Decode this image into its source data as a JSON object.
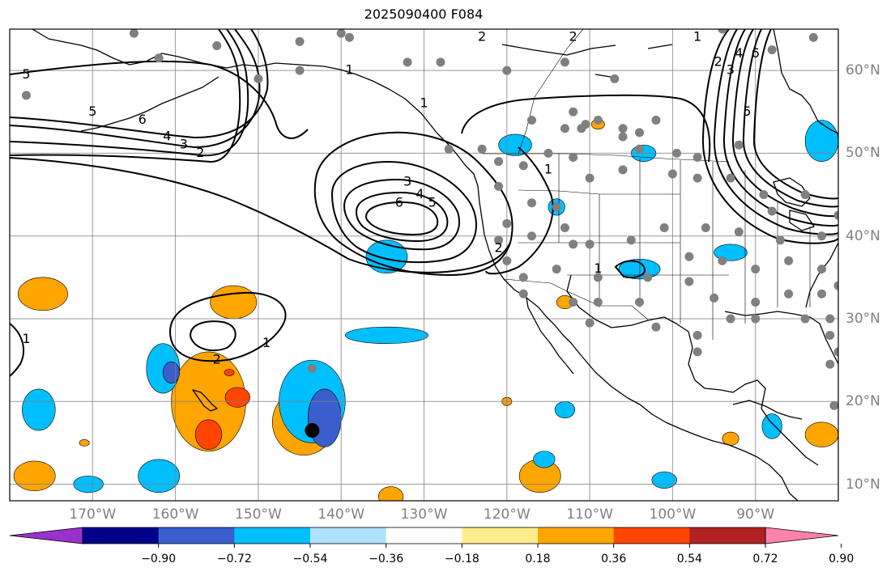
{
  "title": "2025090400 F084",
  "map_extent": {
    "lon_min": -180,
    "lon_max": -80,
    "lat_min": 8,
    "lat_max": 65
  },
  "lon_labels": [
    {
      "lon": -170,
      "text": "170°W"
    },
    {
      "lon": -160,
      "text": "160°W"
    },
    {
      "lon": -150,
      "text": "150°W"
    },
    {
      "lon": -140,
      "text": "140°W"
    },
    {
      "lon": -130,
      "text": "130°W"
    },
    {
      "lon": -120,
      "text": "120°W"
    },
    {
      "lon": -110,
      "text": "110°W"
    },
    {
      "lon": -100,
      "text": "100°W"
    },
    {
      "lon": -90,
      "text": "90°W"
    }
  ],
  "lat_labels": [
    {
      "lat": 60,
      "text": "60°N"
    },
    {
      "lat": 50,
      "text": "50°N"
    },
    {
      "lat": 40,
      "text": "40°N"
    },
    {
      "lat": 30,
      "text": "30°N"
    },
    {
      "lat": 20,
      "text": "20°N"
    },
    {
      "lat": 10,
      "text": "10°N"
    }
  ],
  "colorbar": {
    "colors": [
      "#9932cc",
      "#00008b",
      "#3a5fcd",
      "#00bfff",
      "#b0e2ff",
      "#ffffff",
      "#ffec8b",
      "#ffa500",
      "#ff4500",
      "#b22222",
      "#ff82ab"
    ],
    "tick_labels": [
      "−0.90",
      "−0.72",
      "−0.54",
      "−0.36",
      "−0.18",
      "0.18",
      "0.36",
      "0.54",
      "0.72",
      "0.90"
    ]
  },
  "contour_labels": [
    {
      "text": "5",
      "lon": -178,
      "lat": 59.5
    },
    {
      "text": "5",
      "lon": -170,
      "lat": 55
    },
    {
      "text": "6",
      "lon": -164,
      "lat": 54
    },
    {
      "text": "4",
      "lon": -161,
      "lat": 52
    },
    {
      "text": "3",
      "lon": -159,
      "lat": 51
    },
    {
      "text": "2",
      "lon": -157,
      "lat": 50
    },
    {
      "text": "1",
      "lon": -139,
      "lat": 60
    },
    {
      "text": "3",
      "lon": -132,
      "lat": 46.5
    },
    {
      "text": "4",
      "lon": -130.5,
      "lat": 45
    },
    {
      "text": "5",
      "lon": -129,
      "lat": 44
    },
    {
      "text": "6",
      "lon": -133,
      "lat": 44
    },
    {
      "text": "2",
      "lon": -121,
      "lat": 38.5
    },
    {
      "text": "1",
      "lon": -130,
      "lat": 56
    },
    {
      "text": "1",
      "lon": -115,
      "lat": 48
    },
    {
      "text": "2",
      "lon": -112,
      "lat": 64
    },
    {
      "text": "1",
      "lon": -109,
      "lat": 36
    },
    {
      "text": "1",
      "lon": -97,
      "lat": 64
    },
    {
      "text": "2",
      "lon": -94.5,
      "lat": 61
    },
    {
      "text": "3",
      "lon": -93,
      "lat": 60
    },
    {
      "text": "4",
      "lon": -92,
      "lat": 62
    },
    {
      "text": "6",
      "lon": -90,
      "lat": 62
    },
    {
      "text": "5",
      "lon": -91,
      "lat": 55
    },
    {
      "text": "2",
      "lon": -155,
      "lat": 25
    },
    {
      "text": "1",
      "lon": -149,
      "lat": 27
    },
    {
      "text": "1",
      "lon": -178,
      "lat": 27.5
    },
    {
      "text": "2",
      "lon": -123,
      "lat": 64
    }
  ],
  "anomalies": [
    {
      "lon": -176,
      "lat": 33,
      "rx": 3,
      "ry": 2,
      "level": "0.36"
    },
    {
      "lon": -153,
      "lat": 32,
      "rx": 2.8,
      "ry": 2,
      "level": "0.36"
    },
    {
      "lon": -156,
      "lat": 20,
      "rx": 4.5,
      "ry": 6,
      "level": "0.36"
    },
    {
      "lon": -156,
      "lat": 16,
      "rx": 1.6,
      "ry": 1.8,
      "level": "0.54"
    },
    {
      "lon": -152.5,
      "lat": 20.5,
      "rx": 1.5,
      "ry": 1.2,
      "level": "0.54"
    },
    {
      "lon": -144.5,
      "lat": 17.5,
      "rx": 3.8,
      "ry": 4,
      "level": "0.36"
    },
    {
      "lon": -144,
      "lat": 18,
      "rx": 2.5,
      "ry": 2.5,
      "level": "0.54"
    },
    {
      "lon": -143.5,
      "lat": 19,
      "rx": 0.8,
      "ry": 0.8,
      "level": "0.72"
    },
    {
      "lon": -177,
      "lat": 11,
      "rx": 2.5,
      "ry": 1.8,
      "level": "0.36"
    },
    {
      "lon": -116,
      "lat": 11,
      "rx": 2.5,
      "ry": 2,
      "level": "0.36"
    },
    {
      "lon": -134,
      "lat": 8.5,
      "rx": 1.5,
      "ry": 1.2,
      "level": "0.36"
    },
    {
      "lon": -82,
      "lat": 16,
      "rx": 2,
      "ry": 1.5,
      "level": "0.36"
    },
    {
      "lon": -93,
      "lat": 15.5,
      "rx": 1,
      "ry": 0.8,
      "level": "0.36"
    },
    {
      "lon": -113,
      "lat": 32,
      "rx": 1,
      "ry": 0.8,
      "level": "0.36"
    },
    {
      "lon": -109,
      "lat": 53.5,
      "rx": 0.8,
      "ry": 0.6,
      "level": "0.36"
    },
    {
      "lon": -120,
      "lat": 20,
      "rx": 0.6,
      "ry": 0.5,
      "level": "0.36"
    },
    {
      "lon": -171,
      "lat": 15,
      "rx": 0.6,
      "ry": 0.4,
      "level": "0.36"
    },
    {
      "lon": -153.5,
      "lat": 23.5,
      "rx": 0.6,
      "ry": 0.4,
      "level": "0.54"
    },
    {
      "lon": -143.5,
      "lat": 20,
      "rx": 4,
      "ry": 5,
      "level": "-0.36"
    },
    {
      "lon": -142,
      "lat": 18,
      "rx": 2,
      "ry": 3.5,
      "level": "-0.54"
    },
    {
      "lon": -161.5,
      "lat": 24,
      "rx": 2,
      "ry": 3,
      "level": "-0.36"
    },
    {
      "lon": -160.5,
      "lat": 23.5,
      "rx": 1,
      "ry": 1.3,
      "level": "-0.54"
    },
    {
      "lon": -176.5,
      "lat": 19,
      "rx": 2,
      "ry": 2.5,
      "level": "-0.36"
    },
    {
      "lon": -162,
      "lat": 11,
      "rx": 2.5,
      "ry": 2,
      "level": "-0.36"
    },
    {
      "lon": -170.5,
      "lat": 10,
      "rx": 1.8,
      "ry": 1,
      "level": "-0.36"
    },
    {
      "lon": -134.5,
      "lat": 28,
      "rx": 5,
      "ry": 1,
      "level": "-0.36"
    },
    {
      "lon": -134.5,
      "lat": 37.5,
      "rx": 2.5,
      "ry": 2,
      "level": "-0.36"
    },
    {
      "lon": -119,
      "lat": 51,
      "rx": 2,
      "ry": 1.3,
      "level": "-0.36"
    },
    {
      "lon": -103.5,
      "lat": 50,
      "rx": 1.5,
      "ry": 1,
      "level": "-0.36"
    },
    {
      "lon": -114,
      "lat": 43.5,
      "rx": 1,
      "ry": 1,
      "level": "-0.36"
    },
    {
      "lon": -104,
      "lat": 36,
      "rx": 2.5,
      "ry": 1.2,
      "level": "-0.36"
    },
    {
      "lon": -93,
      "lat": 38,
      "rx": 2,
      "ry": 1,
      "level": "-0.36"
    },
    {
      "lon": -82,
      "lat": 51.5,
      "rx": 2,
      "ry": 2.5,
      "level": "-0.36"
    },
    {
      "lon": -101,
      "lat": 10.5,
      "rx": 1.5,
      "ry": 1,
      "level": "-0.36"
    },
    {
      "lon": -88,
      "lat": 17,
      "rx": 1.2,
      "ry": 1.5,
      "level": "-0.36"
    },
    {
      "lon": -113,
      "lat": 19,
      "rx": 1.2,
      "ry": 1,
      "level": "-0.36"
    },
    {
      "lon": -115.5,
      "lat": 13,
      "rx": 1.3,
      "ry": 1,
      "level": "-0.36"
    }
  ],
  "stations": [
    [
      -165,
      64.5
    ],
    [
      -155,
      63
    ],
    [
      -162,
      61.5
    ],
    [
      -140,
      64.5
    ],
    [
      -150,
      59
    ],
    [
      -145,
      60
    ],
    [
      -178,
      57
    ],
    [
      -145,
      63.5
    ],
    [
      -139,
      64
    ],
    [
      -132,
      61
    ],
    [
      -128,
      61
    ],
    [
      -120,
      60
    ],
    [
      -113,
      61
    ],
    [
      -107,
      59
    ],
    [
      -88,
      62.5
    ],
    [
      -83,
      64
    ],
    [
      -94,
      65
    ],
    [
      -117,
      54
    ],
    [
      -112,
      55
    ],
    [
      -110.5,
      53.5
    ],
    [
      -113,
      53
    ],
    [
      -111,
      53
    ],
    [
      -109,
      54
    ],
    [
      -106,
      53
    ],
    [
      -104,
      52.5
    ],
    [
      -102,
      54
    ],
    [
      -106,
      52
    ],
    [
      -92,
      51
    ],
    [
      -104,
      50.5
    ],
    [
      -99.5,
      50
    ],
    [
      -97,
      49.5
    ],
    [
      -123,
      50.5
    ],
    [
      -127,
      50.5
    ],
    [
      -121,
      49
    ],
    [
      -115,
      50
    ],
    [
      -112,
      49.5
    ],
    [
      -118,
      48.5
    ],
    [
      -110,
      47
    ],
    [
      -106,
      48
    ],
    [
      -100,
      47.5
    ],
    [
      -97,
      47
    ],
    [
      -93,
      47
    ],
    [
      -89,
      45
    ],
    [
      -84,
      45
    ],
    [
      -117,
      44
    ],
    [
      -121,
      46
    ],
    [
      -114,
      43.5
    ],
    [
      -120,
      41.5
    ],
    [
      -113,
      41
    ],
    [
      -117,
      40
    ],
    [
      -112,
      39
    ],
    [
      -121,
      39.5
    ],
    [
      -110,
      39
    ],
    [
      -105,
      39.5
    ],
    [
      -101,
      41
    ],
    [
      -96,
      41
    ],
    [
      -92,
      40.5
    ],
    [
      -87,
      39.5
    ],
    [
      -82,
      40
    ],
    [
      -80,
      42.5
    ],
    [
      -88,
      43
    ],
    [
      -120,
      37
    ],
    [
      -118,
      35
    ],
    [
      -114,
      36
    ],
    [
      -109,
      35
    ],
    [
      -103,
      35
    ],
    [
      -98,
      37.5
    ],
    [
      -94,
      37
    ],
    [
      -90,
      36
    ],
    [
      -86,
      37
    ],
    [
      -82,
      36
    ],
    [
      -80,
      34
    ],
    [
      -118,
      33
    ],
    [
      -112,
      32
    ],
    [
      -109,
      32
    ],
    [
      -104,
      32
    ],
    [
      -98,
      34.5
    ],
    [
      -95,
      32.5
    ],
    [
      -90,
      32
    ],
    [
      -86,
      33
    ],
    [
      -82,
      33
    ],
    [
      -93,
      30
    ],
    [
      -90,
      30
    ],
    [
      -84,
      30
    ],
    [
      -81,
      30
    ],
    [
      -102,
      29
    ],
    [
      -97,
      28
    ],
    [
      -81,
      28
    ],
    [
      -97,
      26
    ],
    [
      -80,
      26
    ],
    [
      -81,
      24.5
    ],
    [
      -80.5,
      19.5
    ],
    [
      -110,
      29.5
    ],
    [
      -143.5,
      24
    ]
  ],
  "black_dot": {
    "lon": -143.5,
    "lat": 16.5
  }
}
